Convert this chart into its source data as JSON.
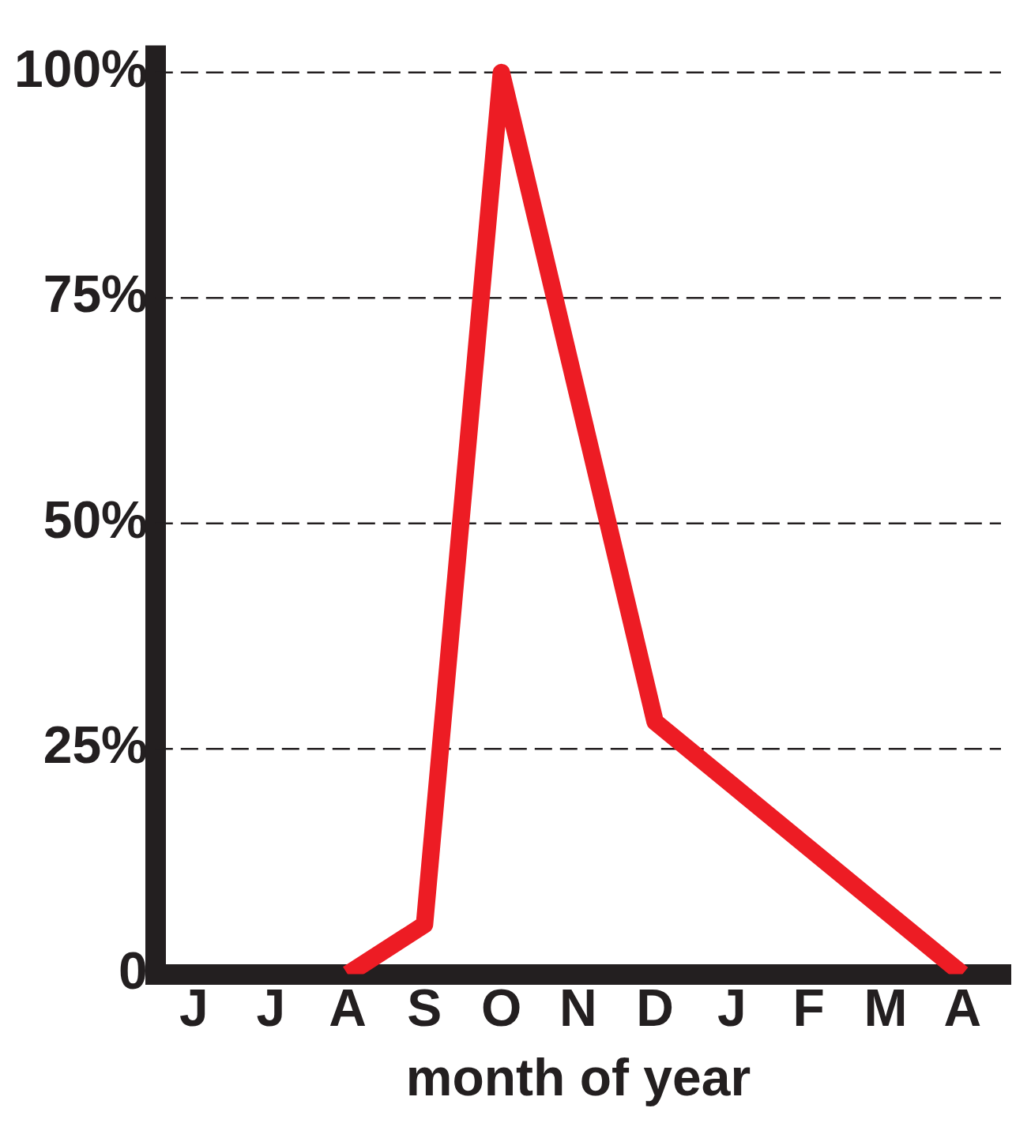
{
  "chart_data": {
    "type": "line",
    "xlabel": "month of year",
    "categories": [
      "J",
      "J",
      "A",
      "S",
      "O",
      "N",
      "D",
      "J",
      "F",
      "M",
      "A"
    ],
    "series": [
      {
        "color": "#ed1c24",
        "values": [
          null,
          null,
          0,
          5.5,
          100,
          64,
          28,
          21,
          14,
          7,
          0
        ]
      }
    ],
    "ylim": [
      0,
      103
    ],
    "yticks": [
      0,
      {
        "value": 25,
        "label": "25%"
      },
      {
        "value": 50,
        "label": "50%"
      },
      {
        "value": 75,
        "label": "75%"
      },
      {
        "value": 100,
        "label": "100%"
      }
    ],
    "grid": "y",
    "line_style": "solid",
    "marker": "none",
    "legend": false
  }
}
